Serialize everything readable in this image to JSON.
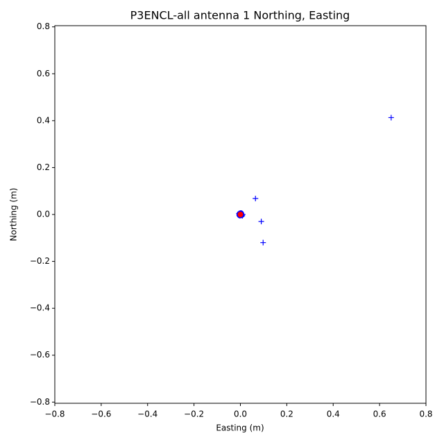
{
  "chart_data": {
    "type": "scatter",
    "title": "P3ENCL-all antenna 1 Northing, Easting",
    "x_label": "Easting (m)",
    "y_label": "Northing (m)",
    "xlim": [
      -0.8,
      0.8
    ],
    "ylim": [
      -0.805,
      0.805
    ],
    "xticks": [
      {
        "value": -0.8,
        "label": "−0.8"
      },
      {
        "value": -0.6,
        "label": "−0.6"
      },
      {
        "value": -0.4,
        "label": "−0.4"
      },
      {
        "value": -0.2,
        "label": "−0.2"
      },
      {
        "value": 0.0,
        "label": "0.0"
      },
      0.2,
      0.4,
      0.6,
      0.8
    ],
    "yticks": [
      {
        "value": -0.8,
        "label": "−0.8"
      },
      {
        "value": -0.6,
        "label": "−0.6"
      },
      {
        "value": -0.4,
        "label": "−0.4"
      },
      {
        "value": -0.2,
        "label": "−0.2"
      },
      {
        "value": 0.0,
        "label": "0.0"
      },
      0.2,
      0.4,
      0.6,
      0.8
    ],
    "grid": false,
    "series": [
      {
        "color": "#0000ff",
        "marker": "plus",
        "x": [
          0.65,
          0.065,
          0.09,
          0.098,
          0.0,
          0.008,
          -0.006,
          0.01
        ],
        "values": [
          0.413,
          0.068,
          -0.03,
          -0.12,
          0.005,
          -0.006,
          0.004,
          0.0
        ]
      },
      {
        "color": "#0000ff",
        "marker": "circle",
        "x": [
          0.0,
          0.004,
          -0.004,
          0.006,
          -0.002,
          0.002,
          -0.005,
          0.005
        ],
        "values": [
          0.0,
          0.004,
          0.003,
          -0.003,
          -0.005,
          0.006,
          -0.002,
          0.001
        ]
      },
      {
        "color": "#ff0000",
        "marker": "circle",
        "x": [
          0.0
        ],
        "values": [
          0.0
        ]
      }
    ]
  }
}
